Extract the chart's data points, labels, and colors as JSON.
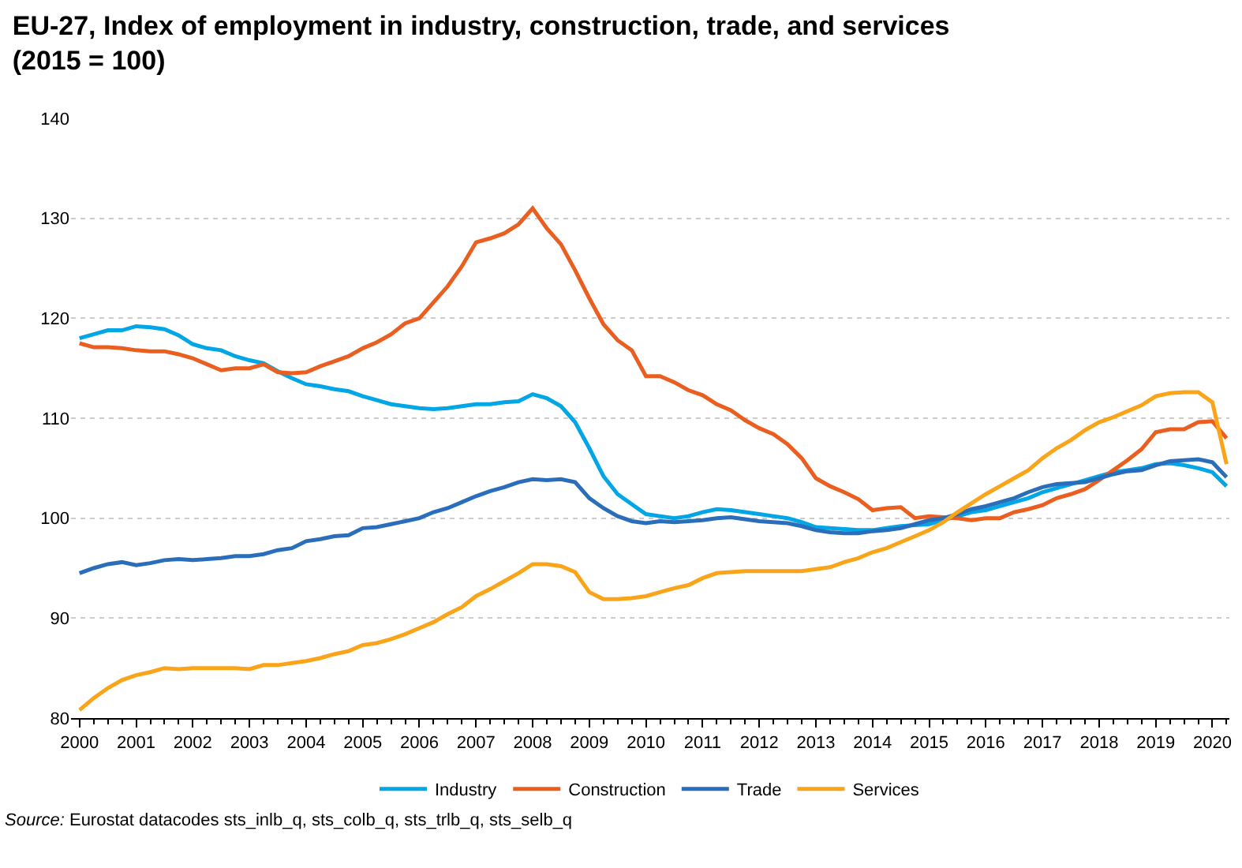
{
  "chart_data": {
    "type": "line",
    "title": "EU-27, Index of employment in industry, construction, trade, and services\n(2015 = 100)",
    "x": [
      2000,
      2000.25,
      2000.5,
      2000.75,
      2001,
      2001.25,
      2001.5,
      2001.75,
      2002,
      2002.25,
      2002.5,
      2002.75,
      2003,
      2003.25,
      2003.5,
      2003.75,
      2004,
      2004.25,
      2004.5,
      2004.75,
      2005,
      2005.25,
      2005.5,
      2005.75,
      2006,
      2006.25,
      2006.5,
      2006.75,
      2007,
      2007.25,
      2007.5,
      2007.75,
      2008,
      2008.25,
      2008.5,
      2008.75,
      2009,
      2009.25,
      2009.5,
      2009.75,
      2010,
      2010.25,
      2010.5,
      2010.75,
      2011,
      2011.25,
      2011.5,
      2011.75,
      2012,
      2012.25,
      2012.5,
      2012.75,
      2013,
      2013.25,
      2013.5,
      2013.75,
      2014,
      2014.25,
      2014.5,
      2014.75,
      2015,
      2015.25,
      2015.5,
      2015.75,
      2016,
      2016.25,
      2016.5,
      2016.75,
      2017,
      2017.25,
      2017.5,
      2017.75,
      2018,
      2018.25,
      2018.5,
      2018.75,
      2019,
      2019.25,
      2019.5,
      2019.75,
      2020,
      2020.25
    ],
    "series": [
      {
        "name": "Industry",
        "color": "#00a6e6",
        "values": [
          118.0,
          118.4,
          118.8,
          118.8,
          119.2,
          119.1,
          118.9,
          118.3,
          117.4,
          117.0,
          116.8,
          116.2,
          115.8,
          115.5,
          114.7,
          114.0,
          113.4,
          113.2,
          112.9,
          112.7,
          112.2,
          111.8,
          111.4,
          111.2,
          111.0,
          110.9,
          111.0,
          111.2,
          111.4,
          111.4,
          111.6,
          111.7,
          112.4,
          112.0,
          111.2,
          109.6,
          107.0,
          104.2,
          102.4,
          101.4,
          100.4,
          100.2,
          100.0,
          100.2,
          100.6,
          100.9,
          100.8,
          100.6,
          100.4,
          100.2,
          100.0,
          99.6,
          99.1,
          99.0,
          98.9,
          98.8,
          98.8,
          99.0,
          99.2,
          99.3,
          99.4,
          99.8,
          100.2,
          100.6,
          100.8,
          101.2,
          101.6,
          102.0,
          102.6,
          103.0,
          103.4,
          103.8,
          104.2,
          104.6,
          104.8,
          105.0,
          105.4,
          105.5,
          105.3,
          105.0,
          104.6,
          103.2
        ]
      },
      {
        "name": "Construction",
        "color": "#ea5f20",
        "values": [
          117.5,
          117.1,
          117.1,
          117.0,
          116.8,
          116.7,
          116.7,
          116.4,
          116.0,
          115.4,
          114.8,
          115.0,
          115.0,
          115.4,
          114.6,
          114.5,
          114.6,
          115.2,
          115.7,
          116.2,
          117.0,
          117.6,
          118.4,
          119.5,
          120.0,
          121.6,
          123.2,
          125.2,
          127.6,
          128.0,
          128.5,
          129.4,
          131.0,
          129.0,
          127.4,
          124.8,
          122.0,
          119.4,
          117.8,
          116.8,
          114.2,
          114.2,
          113.6,
          112.8,
          112.3,
          111.4,
          110.8,
          109.8,
          109.0,
          108.4,
          107.4,
          106.0,
          104.0,
          103.2,
          102.6,
          101.9,
          100.8,
          101.0,
          101.1,
          100.0,
          100.2,
          100.1,
          100.0,
          99.8,
          100.0,
          100.0,
          100.6,
          100.9,
          101.3,
          102.0,
          102.4,
          102.9,
          103.8,
          104.8,
          105.8,
          106.9,
          108.6,
          108.9,
          108.9,
          109.6,
          109.7,
          108.0
        ]
      },
      {
        "name": "Trade",
        "color": "#2a6ebb",
        "values": [
          94.5,
          95.0,
          95.4,
          95.6,
          95.3,
          95.5,
          95.8,
          95.9,
          95.8,
          95.9,
          96.0,
          96.2,
          96.2,
          96.4,
          96.8,
          97.0,
          97.7,
          97.9,
          98.2,
          98.3,
          99.0,
          99.1,
          99.4,
          99.7,
          100.0,
          100.6,
          101.0,
          101.6,
          102.2,
          102.7,
          103.1,
          103.6,
          103.9,
          103.8,
          103.9,
          103.6,
          102.0,
          101.0,
          100.2,
          99.7,
          99.5,
          99.7,
          99.6,
          99.7,
          99.8,
          100.0,
          100.1,
          99.9,
          99.7,
          99.6,
          99.5,
          99.2,
          98.8,
          98.6,
          98.5,
          98.5,
          98.7,
          98.8,
          99.0,
          99.4,
          99.8,
          100.0,
          100.4,
          100.9,
          101.2,
          101.6,
          102.0,
          102.6,
          103.1,
          103.4,
          103.5,
          103.6,
          104.0,
          104.4,
          104.7,
          104.8,
          105.3,
          105.7,
          105.8,
          105.9,
          105.6,
          104.1
        ]
      },
      {
        "name": "Services",
        "color": "#faa519",
        "values": [
          80.8,
          82.0,
          83.0,
          83.8,
          84.3,
          84.6,
          85.0,
          84.9,
          85.0,
          85.0,
          85.0,
          85.0,
          84.9,
          85.3,
          85.3,
          85.5,
          85.7,
          86.0,
          86.4,
          86.7,
          87.3,
          87.5,
          87.9,
          88.4,
          89.0,
          89.6,
          90.4,
          91.1,
          92.2,
          92.9,
          93.7,
          94.5,
          95.4,
          95.4,
          95.2,
          94.6,
          92.6,
          91.9,
          91.9,
          92.0,
          92.2,
          92.6,
          93.0,
          93.3,
          94.0,
          94.5,
          94.6,
          94.7,
          94.7,
          94.7,
          94.7,
          94.7,
          94.9,
          95.1,
          95.6,
          96.0,
          96.6,
          97.0,
          97.6,
          98.2,
          98.8,
          99.6,
          100.6,
          101.5,
          102.4,
          103.2,
          104.0,
          104.8,
          106.0,
          107.0,
          107.8,
          108.8,
          109.6,
          110.1,
          110.7,
          111.3,
          112.2,
          112.5,
          112.6,
          112.6,
          111.6,
          105.4
        ]
      }
    ],
    "xlim": [
      1999.85,
      2020.3
    ],
    "xticks": [
      2000,
      2001,
      2002,
      2003,
      2004,
      2005,
      2006,
      2007,
      2008,
      2009,
      2010,
      2011,
      2012,
      2013,
      2014,
      2015,
      2016,
      2017,
      2018,
      2019,
      2020
    ],
    "ylim": [
      80,
      140
    ],
    "yticks": [
      80,
      90,
      100,
      110,
      120,
      130,
      140
    ],
    "grid": "y",
    "legend": "bottom",
    "marker": "none",
    "line_style": "solid",
    "annotations": [
      "Source: Eurostat datacodes sts_inlb_q, sts_colb_q, sts_trlb_q, sts_selb_q"
    ]
  }
}
